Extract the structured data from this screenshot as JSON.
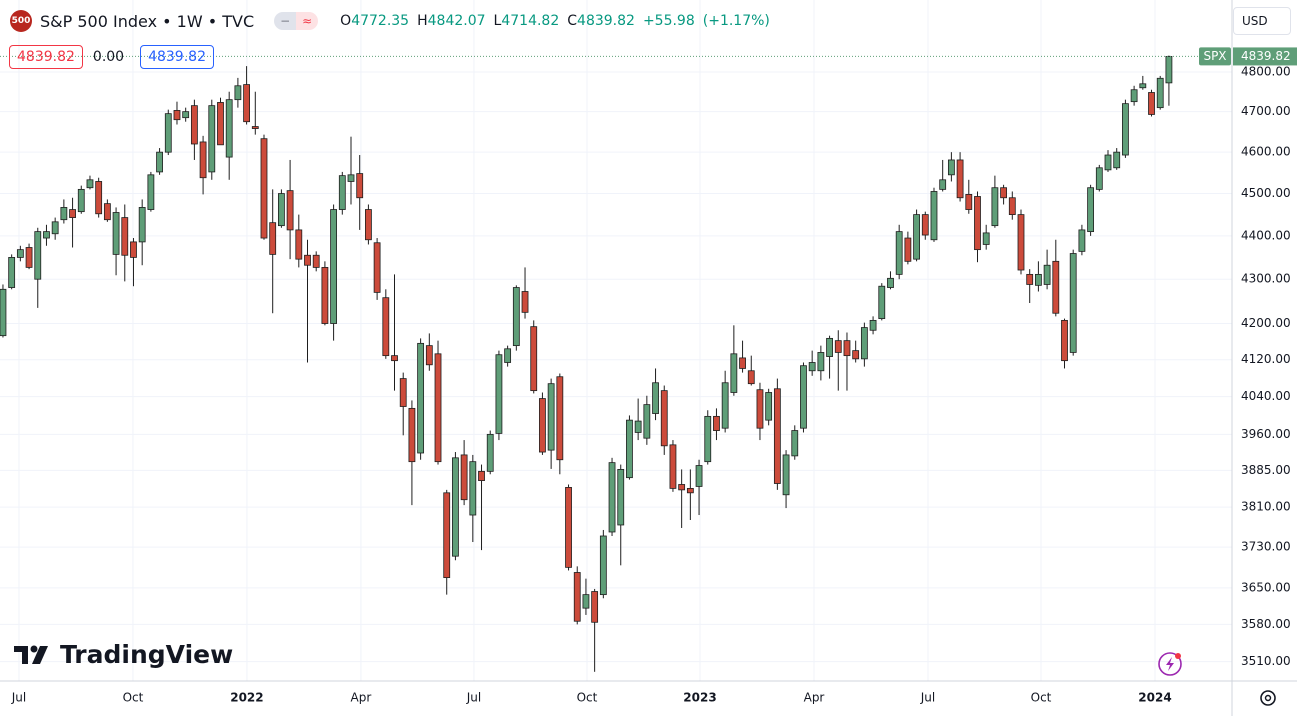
{
  "header": {
    "logo": "500",
    "title": "S&P 500 Index • 1W • TVC",
    "ohlc_labels": {
      "open": "O",
      "high": "H",
      "low": "L",
      "close": "C"
    },
    "change": "+55.98",
    "change_pct": "(+1.17%)"
  },
  "quote": {
    "sell": "4839.82",
    "spread": "0.00",
    "buy": "4839.82"
  },
  "currency": "USD",
  "price_tag": {
    "symbol": "SPX"
  },
  "watermark": "TradingView",
  "chart_data": {
    "type": "candlestick",
    "log_scale": true,
    "grid": true,
    "up_color": "#5f9e78",
    "down_color": "#cc4b3b",
    "border_color": "#1e1e1e",
    "ylim": [
      3474,
      4987
    ],
    "yticks": [
      {
        "value": 4800,
        "label": "4800.00"
      },
      {
        "value": 4700,
        "label": "4700.00"
      },
      {
        "value": 4600,
        "label": "4600.00"
      },
      {
        "value": 4500,
        "label": "4500.00"
      },
      {
        "value": 4400,
        "label": "4400.00"
      },
      {
        "value": 4300,
        "label": "4300.00"
      },
      {
        "value": 4200,
        "label": "4200.00"
      },
      {
        "value": 4120,
        "label": "4120.00"
      },
      {
        "value": 4040,
        "label": "4040.00"
      },
      {
        "value": 3960,
        "label": "3960.00"
      },
      {
        "value": 3885,
        "label": "3885.00"
      },
      {
        "value": 3810,
        "label": "3810.00"
      },
      {
        "value": 3730,
        "label": "3730.00"
      },
      {
        "value": 3650,
        "label": "3650.00"
      },
      {
        "value": 3580,
        "label": "3580.00"
      },
      {
        "value": 3510,
        "label": "3510.00"
      }
    ],
    "xlim": [
      -0.34,
      141.25
    ],
    "xticks": [
      {
        "value": 1.84,
        "label": "Jul"
      },
      {
        "value": 14.94,
        "label": "Oct"
      },
      {
        "value": 28.04,
        "label": "2022"
      },
      {
        "value": 41.14,
        "label": "Apr"
      },
      {
        "value": 54.13,
        "label": "Jul"
      },
      {
        "value": 67.12,
        "label": "Oct"
      },
      {
        "value": 80.11,
        "label": "2023"
      },
      {
        "value": 93.21,
        "label": "Apr"
      },
      {
        "value": 106.31,
        "label": "Jul"
      },
      {
        "value": 119.3,
        "label": "Oct"
      },
      {
        "value": 132.4,
        "label": "2024"
      }
    ],
    "ohlc": [
      [
        4173,
        4288,
        4169,
        4277
      ],
      [
        4281,
        4357,
        4277,
        4350
      ],
      [
        4350,
        4377,
        4341,
        4368
      ],
      [
        4373,
        4382,
        4323,
        4327
      ],
      [
        4300,
        4419,
        4235,
        4410
      ],
      [
        4395,
        4426,
        4377,
        4410
      ],
      [
        4405,
        4443,
        4391,
        4433
      ],
      [
        4438,
        4486,
        4429,
        4467
      ],
      [
        4462,
        4490,
        4373,
        4443
      ],
      [
        4457,
        4519,
        4452,
        4510
      ],
      [
        4514,
        4543,
        4510,
        4533
      ],
      [
        4529,
        4538,
        4443,
        4452
      ],
      [
        4476,
        4486,
        4433,
        4438
      ],
      [
        4357,
        4467,
        4309,
        4455
      ],
      [
        4443,
        4474,
        4295,
        4355
      ],
      [
        4386,
        4395,
        4284,
        4350
      ],
      [
        4386,
        4486,
        4332,
        4467
      ],
      [
        4462,
        4552,
        4457,
        4545
      ],
      [
        4552,
        4610,
        4545,
        4600
      ],
      [
        4600,
        4705,
        4593,
        4695
      ],
      [
        4703,
        4725,
        4668,
        4680
      ],
      [
        4685,
        4710,
        4675,
        4700
      ],
      [
        4715,
        4730,
        4581,
        4620
      ],
      [
        4625,
        4640,
        4498,
        4538
      ],
      [
        4552,
        4730,
        4533,
        4715
      ],
      [
        4723,
        4735,
        4625,
        4618
      ],
      [
        4588,
        4750,
        4533,
        4730
      ],
      [
        4730,
        4785,
        4710,
        4765
      ],
      [
        4768,
        4815,
        4668,
        4675
      ],
      [
        4663,
        4750,
        4643,
        4658
      ],
      [
        4633,
        4643,
        4391,
        4395
      ],
      [
        4431,
        4510,
        4223,
        4357
      ],
      [
        4424,
        4510,
        4419,
        4500
      ],
      [
        4507,
        4581,
        4346,
        4414
      ],
      [
        4414,
        4450,
        4327,
        4346
      ],
      [
        4355,
        4391,
        4114,
        4332
      ],
      [
        4355,
        4364,
        4318,
        4327
      ],
      [
        4327,
        4341,
        4196,
        4200
      ],
      [
        4200,
        4474,
        4162,
        4462
      ],
      [
        4462,
        4552,
        4450,
        4543
      ],
      [
        4529,
        4638,
        4474,
        4545
      ],
      [
        4548,
        4593,
        4414,
        4490
      ],
      [
        4462,
        4474,
        4380,
        4391
      ],
      [
        4384,
        4395,
        4253,
        4270
      ],
      [
        4258,
        4277,
        4122,
        4129
      ],
      [
        4129,
        4311,
        4053,
        4118
      ],
      [
        4079,
        4092,
        3958,
        4019
      ],
      [
        4015,
        4032,
        3814,
        3903
      ],
      [
        3921,
        4167,
        3907,
        4156
      ],
      [
        4151,
        4178,
        4096,
        4109
      ],
      [
        4133,
        4162,
        3897,
        3903
      ],
      [
        3839,
        3845,
        3637,
        3670
      ],
      [
        3712,
        3923,
        3704,
        3911
      ],
      [
        3917,
        3948,
        3814,
        3825
      ],
      [
        3794,
        3917,
        3740,
        3903
      ],
      [
        3883,
        3897,
        3724,
        3864
      ],
      [
        3883,
        3968,
        3877,
        3960
      ],
      [
        3962,
        4140,
        3948,
        4131
      ],
      [
        4114,
        4151,
        4105,
        4144
      ],
      [
        4151,
        4286,
        4140,
        4281
      ],
      [
        4272,
        4327,
        4211,
        4225
      ],
      [
        4193,
        4207,
        4047,
        4053
      ],
      [
        4036,
        4049,
        3917,
        3923
      ],
      [
        3927,
        4079,
        3888,
        4068
      ],
      [
        4083,
        4090,
        3877,
        3907
      ],
      [
        3850,
        3856,
        3684,
        3690
      ],
      [
        3680,
        3692,
        3580,
        3586
      ],
      [
        3611,
        3668,
        3598,
        3637
      ],
      [
        3643,
        3648,
        3491,
        3584
      ],
      [
        3637,
        3764,
        3630,
        3752
      ],
      [
        3760,
        3911,
        3752,
        3901
      ],
      [
        3774,
        3897,
        3694,
        3887
      ],
      [
        3870,
        4000,
        3866,
        3990
      ],
      [
        3964,
        4036,
        3948,
        3988
      ],
      [
        3952,
        4042,
        3938,
        4023
      ],
      [
        4004,
        4101,
        3990,
        4070
      ],
      [
        4053,
        4064,
        3917,
        3936
      ],
      [
        3938,
        3948,
        3841,
        3848
      ],
      [
        3856,
        3887,
        3768,
        3845
      ],
      [
        3848,
        3887,
        3784,
        3839
      ],
      [
        3852,
        3907,
        3794,
        3895
      ],
      [
        3903,
        4011,
        3897,
        3998
      ],
      [
        3998,
        4015,
        3948,
        3968
      ],
      [
        3973,
        4096,
        3964,
        4070
      ],
      [
        4049,
        4196,
        4042,
        4133
      ],
      [
        4124,
        4162,
        4092,
        4101
      ],
      [
        4096,
        4129,
        4064,
        4068
      ],
      [
        4055,
        4070,
        3948,
        3973
      ],
      [
        3990,
        4057,
        3979,
        4049
      ],
      [
        4057,
        4079,
        3845,
        3858
      ],
      [
        3835,
        3927,
        3808,
        3917
      ],
      [
        3915,
        3979,
        3907,
        3968
      ],
      [
        3973,
        4114,
        3964,
        4107
      ],
      [
        4096,
        4140,
        4085,
        4114
      ],
      [
        4096,
        4151,
        4075,
        4136
      ],
      [
        4127,
        4173,
        4079,
        4167
      ],
      [
        4162,
        4185,
        4053,
        4136
      ],
      [
        4162,
        4180,
        4053,
        4129
      ],
      [
        4140,
        4162,
        4114,
        4122
      ],
      [
        4122,
        4202,
        4105,
        4191
      ],
      [
        4185,
        4216,
        4176,
        4207
      ],
      [
        4211,
        4291,
        4207,
        4284
      ],
      [
        4281,
        4318,
        4277,
        4302
      ],
      [
        4311,
        4426,
        4300,
        4410
      ],
      [
        4395,
        4410,
        4334,
        4341
      ],
      [
        4346,
        4462,
        4341,
        4450
      ],
      [
        4450,
        4457,
        4391,
        4402
      ],
      [
        4391,
        4514,
        4386,
        4505
      ],
      [
        4510,
        4581,
        4505,
        4533
      ],
      [
        4545,
        4600,
        4529,
        4581
      ],
      [
        4581,
        4600,
        4481,
        4490
      ],
      [
        4498,
        4533,
        4452,
        4462
      ],
      [
        4493,
        4505,
        4339,
        4368
      ],
      [
        4380,
        4426,
        4368,
        4407
      ],
      [
        4424,
        4543,
        4419,
        4514
      ],
      [
        4514,
        4521,
        4474,
        4490
      ],
      [
        4490,
        4505,
        4438,
        4450
      ],
      [
        4450,
        4462,
        4311,
        4321
      ],
      [
        4311,
        4323,
        4246,
        4288
      ],
      [
        4286,
        4341,
        4272,
        4311
      ],
      [
        4288,
        4368,
        4277,
        4332
      ],
      [
        4341,
        4391,
        4216,
        4223
      ],
      [
        4207,
        4211,
        4101,
        4118
      ],
      [
        4136,
        4368,
        4129,
        4359
      ],
      [
        4364,
        4426,
        4355,
        4414
      ],
      [
        4410,
        4521,
        4400,
        4514
      ],
      [
        4510,
        4569,
        4505,
        4562
      ],
      [
        4557,
        4605,
        4552,
        4593
      ],
      [
        4562,
        4610,
        4557,
        4600
      ],
      [
        4593,
        4730,
        4586,
        4720
      ],
      [
        4725,
        4765,
        4715,
        4755
      ],
      [
        4760,
        4790,
        4755,
        4770
      ],
      [
        4748,
        4755,
        4688,
        4693
      ],
      [
        4710,
        4790,
        4705,
        4784
      ],
      [
        4772.35,
        4842.07,
        4714.82,
        4839.82
      ]
    ]
  }
}
